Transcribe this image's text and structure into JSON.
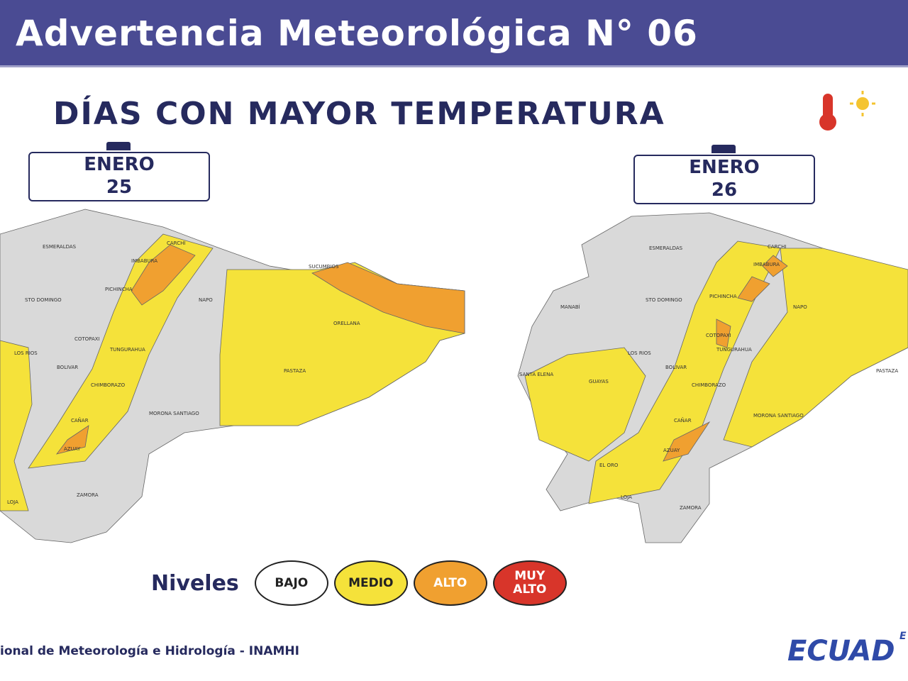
{
  "header": {
    "title": "Advertencia Meteorológica N° 06"
  },
  "subtitle": "DÍAS CON MAYOR TEMPERATURA",
  "maps": [
    {
      "month": "ENERO",
      "day": "25",
      "labels": [
        "ESMERALDAS",
        "CARCHI",
        "IMBABURA",
        "PICHINCHA",
        "STO DOMINGO",
        "NAPO",
        "SUCUMBIOS",
        "ORELLANA",
        "COTOPAXI",
        "TUNGURAHUA",
        "LOS RIOS",
        "BOLIVAR",
        "CHIMBORAZO",
        "PASTAZA",
        "CAÑAR",
        "MORONA SANTIAGO",
        "AZUAY",
        "LOJA",
        "ZAMORA"
      ]
    },
    {
      "month": "ENERO",
      "day": "26",
      "labels": [
        "ESMERALDAS",
        "CARCHI",
        "IMBABURA",
        "MANABÍ",
        "PICHINCHA",
        "STO DOMINGO",
        "NAPO",
        "COTOPAXI",
        "TUNGURAHUA",
        "LOS RIOS",
        "BOLIVAR",
        "PASTAZA",
        "SANTA ELENA",
        "GUAYAS",
        "CHIMBORAZO",
        "CAÑAR",
        "MORONA SANTIAGO",
        "AZUAY",
        "EL ORO",
        "LOJA",
        "ZAMORA"
      ]
    }
  ],
  "legend": {
    "title": "Niveles",
    "levels": [
      "BAJO",
      "MEDIO",
      "ALTO",
      "MUY ALTO"
    ]
  },
  "footer": {
    "source": "ional de Meteorología e Hidrología - INAMHI",
    "logo_top": "E",
    "logo": "ECUAD"
  }
}
